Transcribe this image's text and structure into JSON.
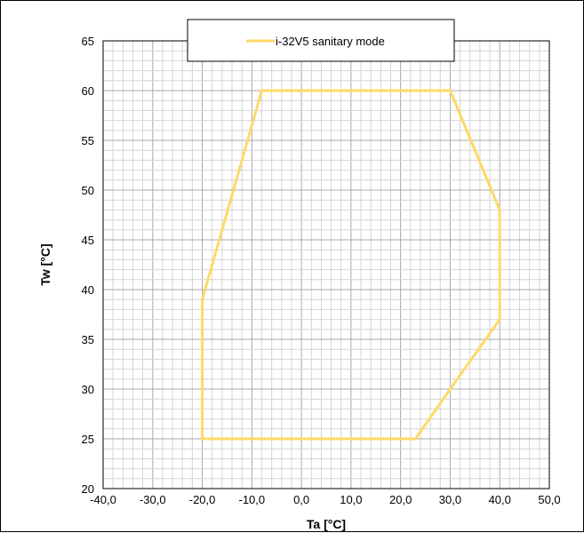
{
  "chart_data": {
    "type": "line",
    "title": "",
    "xlabel": "Ta [°C]",
    "ylabel": "Tw [°C]",
    "xlim": [
      -40,
      50
    ],
    "ylim": [
      20,
      65
    ],
    "x_ticks": [
      -40,
      -30,
      -20,
      -10,
      0,
      10,
      20,
      30,
      40,
      50
    ],
    "x_tick_labels": [
      "-40,0",
      "-30,0",
      "-20,0",
      "-10,0",
      "0,0",
      "10,0",
      "20,0",
      "30,0",
      "40,0",
      "50,0"
    ],
    "y_ticks": [
      20,
      25,
      30,
      35,
      40,
      45,
      50,
      55,
      60,
      65
    ],
    "y_tick_labels": [
      "20",
      "25",
      "30",
      "35",
      "40",
      "45",
      "50",
      "55",
      "60",
      "65"
    ],
    "grid": true,
    "minor_grid_step": {
      "x": 2,
      "y": 1
    },
    "legend_position": "top-center",
    "series": [
      {
        "name": "i-32V5 sanitary mode",
        "color": "#FFD966",
        "x": [
          -20,
          -20,
          23,
          30,
          40,
          40,
          30,
          -8,
          -20
        ],
        "y": [
          39,
          25,
          25,
          30,
          37,
          48,
          60,
          60,
          39
        ]
      }
    ]
  },
  "colors": {
    "grid_minor": "#d4d4d4",
    "grid_major": "#a8a8a8",
    "axis": "#000000"
  }
}
